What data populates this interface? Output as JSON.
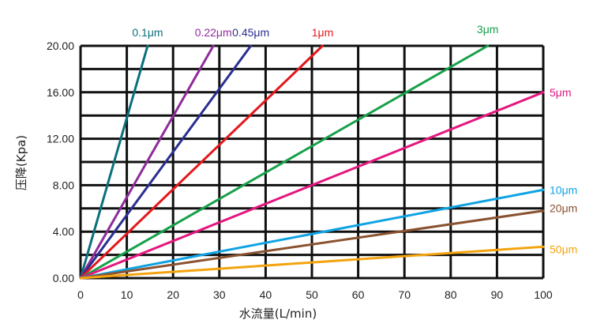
{
  "chart_data": {
    "type": "line",
    "xlabel": "水流量(L/min)",
    "ylabel": "压降(Kpa)",
    "xlim": [
      0,
      100
    ],
    "ylim": [
      0,
      20
    ],
    "grid": true,
    "xticks": [
      "0",
      "10",
      "20",
      "30",
      "40",
      "50",
      "60",
      "70",
      "80",
      "90",
      "100"
    ],
    "yticks": [
      "0.00",
      "4.00",
      "8.00",
      "12.00",
      "16.00",
      "20.00"
    ],
    "series": [
      {
        "name": "0.1μm",
        "color": "#0b6f7c",
        "x": [
          0,
          14.5
        ],
        "y": [
          0,
          20
        ]
      },
      {
        "name": "0.22μm",
        "color": "#8e2c9a",
        "x": [
          0,
          28.7
        ],
        "y": [
          0,
          20
        ]
      },
      {
        "name": "0.45μm",
        "color": "#2b2f8f",
        "x": [
          0,
          36.8
        ],
        "y": [
          0,
          20
        ]
      },
      {
        "name": "1μm",
        "color": "#e3171c",
        "x": [
          0,
          52.3
        ],
        "y": [
          0,
          20
        ]
      },
      {
        "name": "3μm",
        "color": "#17a04a",
        "x": [
          0,
          88.0
        ],
        "y": [
          0,
          20
        ]
      },
      {
        "name": "5μm",
        "color": "#e4177f",
        "x": [
          0,
          100
        ],
        "y": [
          0,
          16.0
        ]
      },
      {
        "name": "10μm",
        "color": "#0fa3e3",
        "x": [
          0,
          100
        ],
        "y": [
          0,
          7.6
        ]
      },
      {
        "name": "20μm",
        "color": "#8a5230",
        "x": [
          0,
          100
        ],
        "y": [
          0,
          5.8
        ]
      },
      {
        "name": "50μm",
        "color": "#f3a30e",
        "x": [
          0,
          100
        ],
        "y": [
          0,
          2.7
        ]
      }
    ]
  }
}
